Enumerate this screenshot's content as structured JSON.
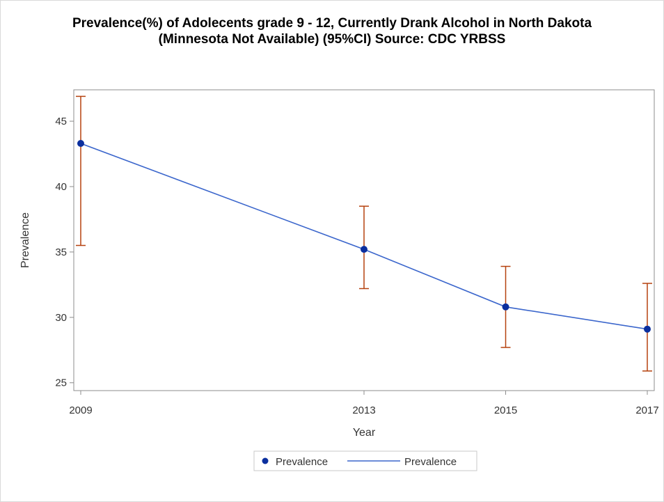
{
  "chart_data": {
    "type": "line",
    "title_line1": "Prevalence(%) of Adolecents grade 9 - 12, Currently Drank Alcohol in North Dakota",
    "title_line2": "(Minnesota Not Available) (95%CI) Source: CDC YRBSS",
    "xlabel": "Year",
    "ylabel": "Prevalence",
    "x": [
      2009,
      2013,
      2015,
      2017
    ],
    "xlim": [
      2009,
      2017
    ],
    "ylim": [
      24.4,
      47.4
    ],
    "y_ticks": [
      25,
      30,
      35,
      40,
      45
    ],
    "series": [
      {
        "name": "Prevalence",
        "values": [
          43.3,
          35.2,
          30.8,
          29.1
        ],
        "ci_lower": [
          35.5,
          32.2,
          27.7,
          25.9
        ],
        "ci_upper": [
          46.9,
          38.5,
          33.9,
          32.6
        ]
      }
    ],
    "legend": {
      "placement": "bottom",
      "entries": [
        {
          "label": "Prevalence",
          "kind": "marker"
        },
        {
          "label": "Prevalence",
          "kind": "line"
        }
      ]
    },
    "grid": false,
    "colors": {
      "line": "#3b66cc",
      "marker": "#0b2f9e",
      "error_bar": "#b5410e",
      "axis": "#8c8c8c"
    }
  }
}
